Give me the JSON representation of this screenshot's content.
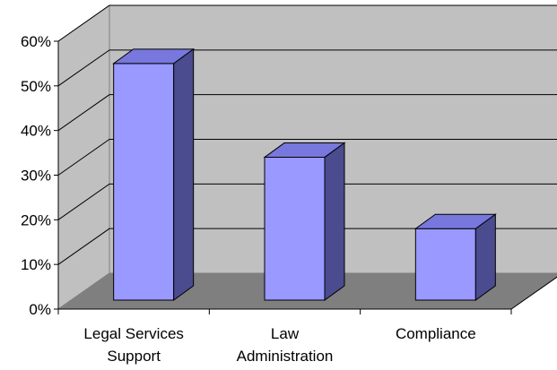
{
  "chart_data": {
    "type": "bar",
    "title": "",
    "xlabel": "",
    "ylabel": "",
    "categories": [
      [
        "Legal Services",
        "Support"
      ],
      [
        "Law",
        "Administration"
      ],
      [
        "Compliance"
      ]
    ],
    "values": [
      0.53,
      0.32,
      0.16
    ],
    "ylim": [
      0,
      0.6
    ],
    "yticks": [
      "0%",
      "10%",
      "20%",
      "30%",
      "40%",
      "50%",
      "60%"
    ],
    "grid": true,
    "legend": "none",
    "three_d": true,
    "colors": {
      "bar_front": "#9999ff",
      "bar_top": "#7777dd",
      "bar_side": "#4b4b8f",
      "back_wall": "#c0c0c0",
      "side_wall": "#c0c0c0",
      "floor": "#7f7f7f",
      "gridline": "#000000"
    }
  }
}
